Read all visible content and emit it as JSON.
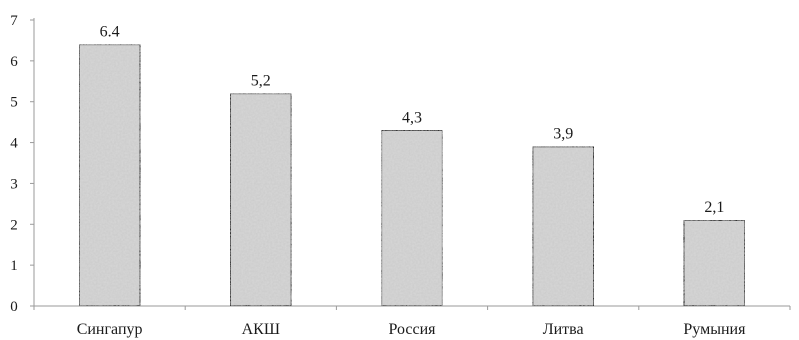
{
  "chart_data": {
    "type": "bar",
    "categories": [
      "Сингапур",
      "АКШ",
      "Россия",
      "Литва",
      "Румыния"
    ],
    "values": [
      6.4,
      5.2,
      4.3,
      3.9,
      2.1
    ],
    "data_labels": [
      "6.4",
      "5,2",
      "4,3",
      "3,9",
      "2,1"
    ],
    "ylim": [
      0,
      7
    ],
    "yticks": [
      0,
      1,
      2,
      3,
      4,
      5,
      6,
      7
    ],
    "grid": false,
    "legend": "none",
    "bar_fill": "#d4d4d4",
    "bar_stroke": "#111111",
    "axis_color": "#9a9a9a"
  }
}
